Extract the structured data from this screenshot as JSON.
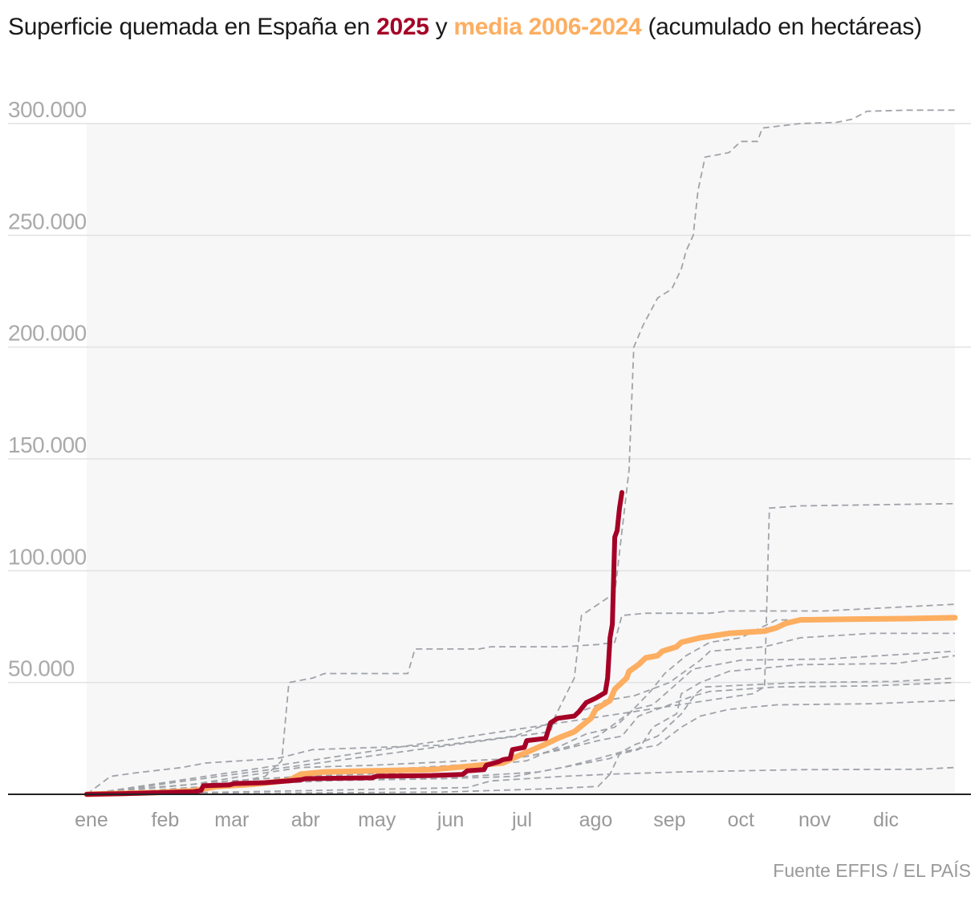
{
  "chart_data": {
    "type": "line",
    "title": {
      "prefix": "Superficie quemada en España en ",
      "highlight_2025": "2025",
      "connector": " y ",
      "highlight_avg": "media 2006-2024",
      "suffix": " (acumulado en hectáreas)"
    },
    "xlabel": "",
    "ylabel": "",
    "x_unit": "day of year",
    "xlim": [
      0,
      365
    ],
    "ylim": [
      0,
      300000
    ],
    "grid": true,
    "y_ticks": [
      {
        "value": 0,
        "label": ""
      },
      {
        "value": 50000,
        "label": "50.000"
      },
      {
        "value": 100000,
        "label": "100.000"
      },
      {
        "value": 150000,
        "label": "150.000"
      },
      {
        "value": 200000,
        "label": "200.000"
      },
      {
        "value": 250000,
        "label": "250.000"
      },
      {
        "value": 300000,
        "label": "300.000"
      }
    ],
    "x_ticks": [
      {
        "day": 1,
        "label": "ene"
      },
      {
        "day": 32,
        "label": "feb"
      },
      {
        "day": 60,
        "label": "mar"
      },
      {
        "day": 91,
        "label": "abr"
      },
      {
        "day": 121,
        "label": "may"
      },
      {
        "day": 152,
        "label": "jun"
      },
      {
        "day": 182,
        "label": "jul"
      },
      {
        "day": 213,
        "label": "ago"
      },
      {
        "day": 244,
        "label": "sep"
      },
      {
        "day": 274,
        "label": "oct"
      },
      {
        "day": 305,
        "label": "nov"
      },
      {
        "day": 335,
        "label": "dic"
      }
    ],
    "colors": {
      "y2025": "#a50026",
      "average": "#fdae61",
      "historical": "#a0a3a8",
      "band": "#f7f7f8",
      "grid": "#e2e2e2",
      "axis": "#222222"
    },
    "series": [
      {
        "name": "2025",
        "kind": "highlight",
        "points": [
          [
            0,
            0
          ],
          [
            15,
            300
          ],
          [
            30,
            700
          ],
          [
            45,
            1200
          ],
          [
            48,
            1600
          ],
          [
            49,
            3800
          ],
          [
            60,
            4200
          ],
          [
            62,
            4800
          ],
          [
            75,
            5200
          ],
          [
            85,
            6000
          ],
          [
            90,
            6500
          ],
          [
            92,
            7000
          ],
          [
            120,
            7400
          ],
          [
            122,
            8100
          ],
          [
            145,
            8400
          ],
          [
            158,
            8900
          ],
          [
            160,
            10500
          ],
          [
            167,
            11000
          ],
          [
            168,
            13000
          ],
          [
            173,
            14500
          ],
          [
            175,
            15500
          ],
          [
            178,
            16000
          ],
          [
            179,
            20000
          ],
          [
            184,
            21000
          ],
          [
            185,
            24000
          ],
          [
            193,
            25000
          ],
          [
            195,
            32000
          ],
          [
            198,
            34000
          ],
          [
            205,
            35000
          ],
          [
            207,
            37000
          ],
          [
            210,
            41000
          ],
          [
            214,
            43000
          ],
          [
            218,
            45500
          ],
          [
            219,
            52000
          ],
          [
            220,
            70000
          ],
          [
            221,
            76000
          ],
          [
            222,
            115000
          ],
          [
            223,
            118000
          ],
          [
            224,
            128000
          ],
          [
            225,
            135000
          ]
        ]
      },
      {
        "name": "media 2006-2024",
        "kind": "average",
        "points": [
          [
            0,
            0
          ],
          [
            30,
            800
          ],
          [
            45,
            1600
          ],
          [
            55,
            3500
          ],
          [
            70,
            4500
          ],
          [
            85,
            6200
          ],
          [
            90,
            9000
          ],
          [
            100,
            10000
          ],
          [
            120,
            10500
          ],
          [
            145,
            11000
          ],
          [
            160,
            12500
          ],
          [
            175,
            14000
          ],
          [
            180,
            16500
          ],
          [
            192,
            22000
          ],
          [
            198,
            25000
          ],
          [
            205,
            28000
          ],
          [
            212,
            34000
          ],
          [
            214,
            38000
          ],
          [
            220,
            42000
          ],
          [
            222,
            47000
          ],
          [
            225,
            50000
          ],
          [
            227,
            52000
          ],
          [
            228,
            55000
          ],
          [
            232,
            58000
          ],
          [
            235,
            61000
          ],
          [
            240,
            62000
          ],
          [
            242,
            64000
          ],
          [
            248,
            66000
          ],
          [
            250,
            68000
          ],
          [
            258,
            70000
          ],
          [
            270,
            72000
          ],
          [
            285,
            73000
          ],
          [
            290,
            74500
          ],
          [
            294,
            76500
          ],
          [
            300,
            78000
          ],
          [
            320,
            78300
          ],
          [
            345,
            78600
          ],
          [
            365,
            79000
          ]
        ]
      },
      {
        "name": "historical-1",
        "kind": "historical",
        "points": [
          [
            0,
            0
          ],
          [
            195,
            28000
          ],
          [
            197,
            35000
          ],
          [
            205,
            52000
          ],
          [
            208,
            80000
          ],
          [
            222,
            90000
          ],
          [
            228,
            145000
          ],
          [
            230,
            200000
          ],
          [
            234,
            210000
          ],
          [
            240,
            222000
          ],
          [
            246,
            226000
          ],
          [
            250,
            235000
          ],
          [
            252,
            243000
          ],
          [
            255,
            250000
          ],
          [
            257,
            270000
          ],
          [
            260,
            285000
          ],
          [
            270,
            287000
          ],
          [
            275,
            292000
          ],
          [
            282,
            292000
          ],
          [
            284,
            298000
          ],
          [
            300,
            300000
          ],
          [
            315,
            300500
          ],
          [
            322,
            302000
          ],
          [
            328,
            305500
          ],
          [
            345,
            306000
          ],
          [
            365,
            306000
          ]
        ]
      },
      {
        "name": "historical-2",
        "kind": "historical",
        "points": [
          [
            0,
            0
          ],
          [
            50,
            3000
          ],
          [
            75,
            8000
          ],
          [
            82,
            15000
          ],
          [
            85,
            50000
          ],
          [
            95,
            52000
          ],
          [
            100,
            54000
          ],
          [
            135,
            54000
          ],
          [
            138,
            65000
          ],
          [
            165,
            65000
          ],
          [
            170,
            66000
          ],
          [
            200,
            66000
          ],
          [
            215,
            67000
          ],
          [
            222,
            68000
          ],
          [
            225,
            80000
          ],
          [
            235,
            81000
          ],
          [
            262,
            81000
          ],
          [
            270,
            82000
          ],
          [
            310,
            82000
          ],
          [
            365,
            85000
          ]
        ]
      },
      {
        "name": "historical-3",
        "kind": "historical",
        "points": [
          [
            0,
            0
          ],
          [
            280,
            45000
          ],
          [
            285,
            48000
          ],
          [
            287,
            128000
          ],
          [
            300,
            129000
          ],
          [
            365,
            130000
          ]
        ]
      },
      {
        "name": "historical-4",
        "kind": "historical",
        "points": [
          [
            0,
            0
          ],
          [
            10,
            8000
          ],
          [
            20,
            9500
          ],
          [
            40,
            12000
          ],
          [
            50,
            14000
          ],
          [
            80,
            16000
          ],
          [
            95,
            20000
          ],
          [
            150,
            22000
          ],
          [
            165,
            24000
          ],
          [
            180,
            26000
          ],
          [
            190,
            30000
          ],
          [
            200,
            34000
          ],
          [
            215,
            40000
          ],
          [
            218,
            42000
          ],
          [
            230,
            44000
          ],
          [
            245,
            50000
          ],
          [
            258,
            60000
          ],
          [
            262,
            64000
          ],
          [
            285,
            66000
          ],
          [
            300,
            70000
          ],
          [
            330,
            72000
          ],
          [
            365,
            72000
          ]
        ]
      },
      {
        "name": "historical-5",
        "kind": "historical",
        "points": [
          [
            0,
            0
          ],
          [
            30,
            3000
          ],
          [
            60,
            6000
          ],
          [
            90,
            8000
          ],
          [
            130,
            9500
          ],
          [
            160,
            12000
          ],
          [
            185,
            15000
          ],
          [
            200,
            22000
          ],
          [
            210,
            27000
          ],
          [
            222,
            30000
          ],
          [
            228,
            36000
          ],
          [
            237,
            46000
          ],
          [
            243,
            54000
          ],
          [
            252,
            62000
          ],
          [
            262,
            68000
          ],
          [
            275,
            70000
          ],
          [
            290,
            78000
          ],
          [
            310,
            78000
          ],
          [
            340,
            78500
          ],
          [
            365,
            79000
          ]
        ]
      },
      {
        "name": "historical-6",
        "kind": "historical",
        "points": [
          [
            0,
            0
          ],
          [
            20,
            1000
          ],
          [
            60,
            4000
          ],
          [
            95,
            6000
          ],
          [
            150,
            7000
          ],
          [
            180,
            8000
          ],
          [
            200,
            12000
          ],
          [
            215,
            16000
          ],
          [
            225,
            19000
          ],
          [
            240,
            22000
          ],
          [
            250,
            30000
          ],
          [
            258,
            35000
          ],
          [
            270,
            38000
          ],
          [
            290,
            40000
          ],
          [
            330,
            40500
          ],
          [
            365,
            42000
          ]
        ]
      },
      {
        "name": "historical-7",
        "kind": "historical",
        "points": [
          [
            0,
            0
          ],
          [
            40,
            2000
          ],
          [
            80,
            5000
          ],
          [
            120,
            7000
          ],
          [
            160,
            8000
          ],
          [
            190,
            10000
          ],
          [
            210,
            14000
          ],
          [
            220,
            16000
          ],
          [
            230,
            22000
          ],
          [
            240,
            26000
          ],
          [
            245,
            31000
          ],
          [
            250,
            36000
          ],
          [
            256,
            45000
          ],
          [
            260,
            48000
          ],
          [
            300,
            50000
          ],
          [
            340,
            50500
          ],
          [
            365,
            52000
          ]
        ]
      },
      {
        "name": "historical-8",
        "kind": "historical",
        "points": [
          [
            0,
            0
          ],
          [
            60,
            1000
          ],
          [
            110,
            2000
          ],
          [
            160,
            3000
          ],
          [
            170,
            6000
          ],
          [
            200,
            8000
          ],
          [
            220,
            9000
          ],
          [
            224,
            18000
          ],
          [
            232,
            20000
          ],
          [
            238,
            30000
          ],
          [
            248,
            36000
          ],
          [
            250,
            45000
          ],
          [
            258,
            50000
          ],
          [
            270,
            55000
          ],
          [
            300,
            58000
          ],
          [
            340,
            58500
          ],
          [
            365,
            62000
          ]
        ]
      },
      {
        "name": "historical-9",
        "kind": "historical",
        "points": [
          [
            0,
            0
          ],
          [
            80,
            500
          ],
          [
            150,
            1000
          ],
          [
            195,
            2500
          ],
          [
            215,
            3500
          ],
          [
            220,
            9000
          ],
          [
            250,
            10000
          ],
          [
            300,
            11000
          ],
          [
            350,
            11200
          ],
          [
            365,
            12000
          ]
        ]
      },
      {
        "name": "historical-10",
        "kind": "historical",
        "points": [
          [
            0,
            0
          ],
          [
            30,
            2000
          ],
          [
            70,
            5000
          ],
          [
            100,
            10000
          ],
          [
            140,
            12000
          ],
          [
            170,
            14000
          ],
          [
            190,
            18000
          ],
          [
            205,
            22000
          ],
          [
            215,
            26000
          ],
          [
            225,
            34000
          ],
          [
            230,
            38000
          ],
          [
            238,
            40000
          ],
          [
            255,
            56000
          ],
          [
            275,
            60000
          ],
          [
            310,
            60500
          ],
          [
            365,
            64000
          ]
        ]
      },
      {
        "name": "historical-11",
        "kind": "historical",
        "points": [
          [
            0,
            0
          ],
          [
            20,
            2500
          ],
          [
            45,
            4500
          ],
          [
            65,
            8000
          ],
          [
            90,
            12000
          ],
          [
            120,
            13000
          ],
          [
            160,
            15000
          ],
          [
            180,
            16000
          ],
          [
            200,
            20000
          ],
          [
            215,
            24000
          ],
          [
            225,
            26000
          ],
          [
            232,
            35000
          ],
          [
            245,
            40000
          ],
          [
            255,
            44000
          ],
          [
            262,
            46000
          ],
          [
            290,
            48000
          ],
          [
            330,
            48500
          ],
          [
            365,
            50000
          ]
        ]
      }
    ]
  },
  "footer": {
    "source": "Fuente EFFIS / EL PAÍS"
  }
}
